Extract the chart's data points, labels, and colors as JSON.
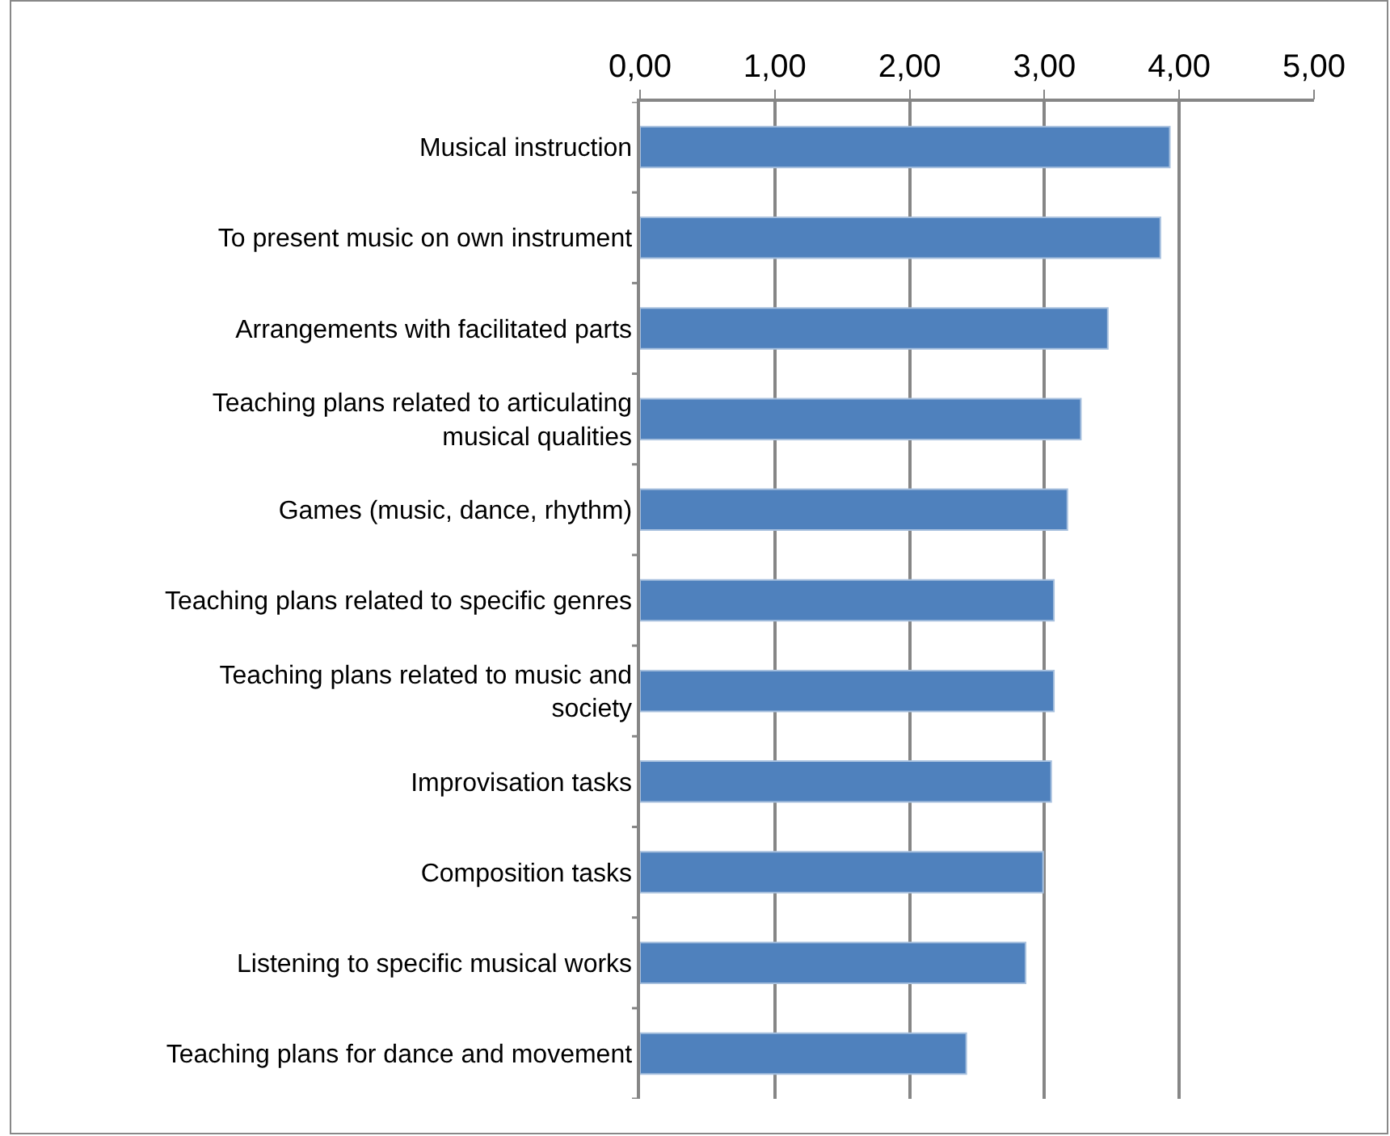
{
  "chart_data": {
    "type": "bar",
    "orientation": "horizontal",
    "categories": [
      "Musical instruction",
      "To present music on own instrument",
      "Arrangements with facilitated parts",
      "Teaching plans related to articulating musical qualities",
      "Games (music, dance, rhythm)",
      "Teaching plans related to specific genres",
      "Teaching plans related to music and society",
      "Improvisation tasks",
      "Composition tasks",
      "Listening to specific musical works",
      "Teaching plans for dance and movement"
    ],
    "values": [
      3.93,
      3.86,
      3.47,
      3.27,
      3.17,
      3.07,
      3.07,
      3.05,
      2.99,
      2.86,
      2.42
    ],
    "color": "#4f81bd",
    "xlim": [
      0,
      5
    ],
    "xticks": [
      {
        "value": 0,
        "label": "0,00"
      },
      {
        "value": 1,
        "label": "1,00"
      },
      {
        "value": 2,
        "label": "2,00"
      },
      {
        "value": 3,
        "label": "3,00"
      },
      {
        "value": 4,
        "label": "4,00"
      },
      {
        "value": 5,
        "label": "5,00"
      }
    ],
    "grid": "x"
  }
}
